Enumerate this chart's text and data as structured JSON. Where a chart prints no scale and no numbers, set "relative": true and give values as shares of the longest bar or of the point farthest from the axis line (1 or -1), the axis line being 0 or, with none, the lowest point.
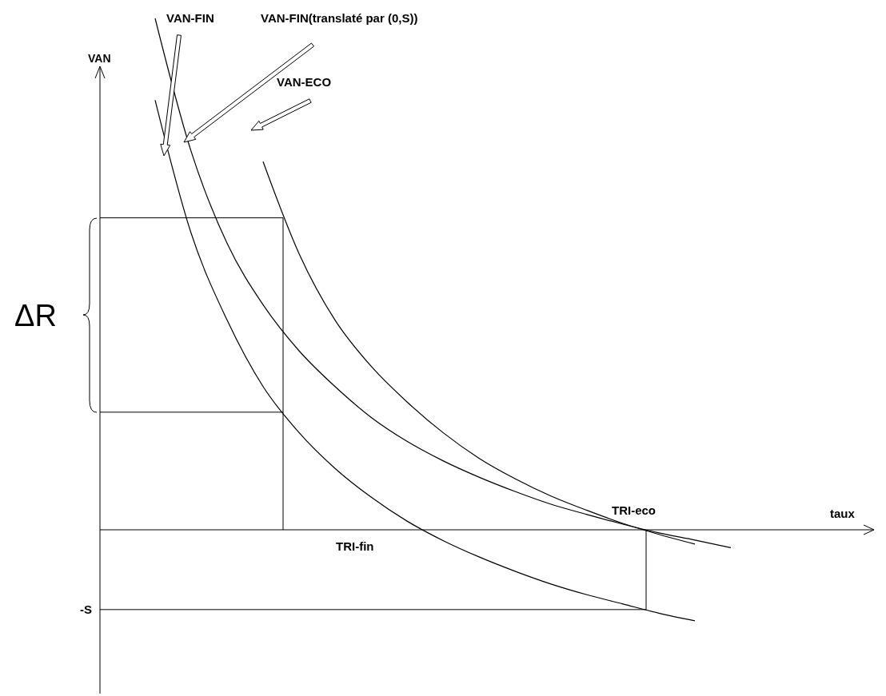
{
  "chart_data": {
    "type": "line",
    "relative": true,
    "ylabel": "VAN",
    "line_style": "solid",
    "categories": [
      null,
      null,
      null,
      null,
      null,
      null,
      null,
      null,
      null,
      null,
      null,
      null,
      null,
      null,
      null,
      null,
      null
    ],
    "series": [
      {
        "color": "#000000",
        "values": [
          0.84,
          0.58,
          0.41,
          0.28,
          0.19,
          0.12,
          0.064,
          0.017,
          -0.021,
          -0.053,
          -0.081,
          -0.106,
          -0.127,
          -0.145,
          -0.163,
          -0.178,
          null
        ]
      },
      {
        "color": "#000000",
        "values": [
          1.0,
          0.74,
          0.56,
          0.44,
          0.35,
          0.28,
          0.22,
          0.173,
          0.135,
          0.103,
          0.075,
          0.05,
          0.03,
          0.011,
          -0.006,
          -0.02,
          -0.035
        ]
      },
      {
        "color": "#000000",
        "values": [
          null,
          null,
          null,
          0.72,
          0.54,
          0.41,
          0.32,
          0.25,
          0.19,
          0.14,
          0.1,
          0.066,
          0.038,
          0.0125,
          -0.009,
          -0.028,
          null
        ]
      }
    ],
    "ref_lines": [
      {
        "axis": "y",
        "value": -0.156,
        "label": "-S",
        "color": "#000000"
      },
      {
        "axis": "y",
        "value": 0.61,
        "color": "#000000"
      },
      {
        "axis": "y",
        "value": 0.23,
        "color": "#000000"
      }
    ],
    "annotations": [
      "VAN-FIN",
      "VAN-FIN(translaté par (0,S))",
      "VAN-ECO",
      "TRI-eco",
      "TRI-fin",
      "ΔR",
      "taux"
    ]
  }
}
